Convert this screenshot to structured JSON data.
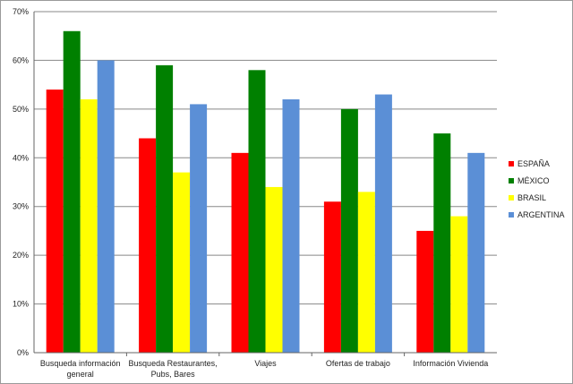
{
  "chart_data": {
    "type": "bar",
    "categories": [
      [
        "Busqueda información",
        "general"
      ],
      [
        "Busqueda Restaurantes,",
        "Pubs, Bares"
      ],
      [
        "Viajes"
      ],
      [
        "Ofertas de trabajo"
      ],
      [
        "Información Vivienda"
      ]
    ],
    "series": [
      {
        "name": "ESPAÑA",
        "color": "#ff0000",
        "values": [
          54,
          44,
          41,
          31,
          25
        ]
      },
      {
        "name": "MÉXICO",
        "color": "#008000",
        "values": [
          66,
          59,
          58,
          50,
          45
        ]
      },
      {
        "name": "BRASIL",
        "color": "#ffff00",
        "values": [
          52,
          37,
          34,
          33,
          28
        ]
      },
      {
        "name": "ARGENTINA",
        "color": "#5b8fd6",
        "values": [
          60,
          51,
          52,
          53,
          41
        ]
      }
    ],
    "ylim": [
      0,
      70
    ],
    "yticks": [
      "0%",
      "10%",
      "20%",
      "30%",
      "40%",
      "50%",
      "60%",
      "70%"
    ],
    "grid": true,
    "legend": "right",
    "title": "",
    "xlabel": "",
    "ylabel": ""
  }
}
